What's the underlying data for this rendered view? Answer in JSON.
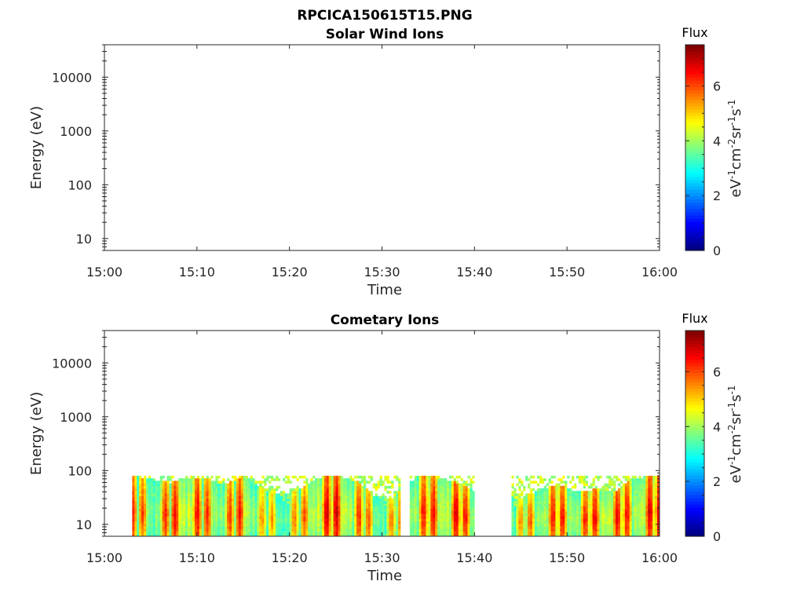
{
  "figure_title": "RPCICA150615T15.PNG",
  "chart_data": [
    {
      "type": "heatmap",
      "title": "Solar Wind Ions",
      "xlabel": "Time",
      "ylabel": "Energy (eV)",
      "x_ticks": [
        "15:00",
        "15:10",
        "15:20",
        "15:30",
        "15:40",
        "15:50",
        "16:00"
      ],
      "xlim": [
        "15:00",
        "16:00"
      ],
      "y_scale": "log",
      "y_ticks": [
        "10",
        "100",
        "1000",
        "10000"
      ],
      "ylim": [
        6,
        40000
      ],
      "colorbar": {
        "label": "Flux",
        "unit_label": "eV-1cm-2sr-1s-1",
        "ticks": [
          "0",
          "2",
          "4",
          "6"
        ],
        "range": [
          0,
          7.5
        ],
        "colormap": "jet"
      },
      "cells": []
    },
    {
      "type": "heatmap",
      "title": "Cometary Ions",
      "xlabel": "Time",
      "ylabel": "Energy (eV)",
      "x_ticks": [
        "15:00",
        "15:10",
        "15:20",
        "15:30",
        "15:40",
        "15:50",
        "16:00"
      ],
      "xlim": [
        "15:00",
        "16:00"
      ],
      "y_scale": "log",
      "y_ticks": [
        "10",
        "100",
        "1000",
        "10000"
      ],
      "ylim": [
        6,
        40000
      ],
      "colorbar": {
        "label": "Flux",
        "unit_label": "eV-1cm-2sr-1s-1",
        "ticks": [
          "0",
          "2",
          "4",
          "6"
        ],
        "range": [
          0,
          7.5
        ],
        "colormap": "jet"
      },
      "data_coverage": {
        "energy_range_eV": [
          6,
          80
        ],
        "time_segments": [
          [
            "15:03",
            "15:32"
          ],
          [
            "15:33",
            "15:40"
          ],
          [
            "15:44",
            "16:00"
          ]
        ]
      },
      "time_profile": [
        {
          "t": 3,
          "e": 80,
          "v": 6.4
        },
        {
          "t": 5,
          "e": 70,
          "v": 5.8
        },
        {
          "t": 7,
          "e": 60,
          "v": 6.6
        },
        {
          "t": 9,
          "e": 75,
          "v": 6.9
        },
        {
          "t": 11,
          "e": 70,
          "v": 6.3
        },
        {
          "t": 13,
          "e": 55,
          "v": 6.1
        },
        {
          "t": 15,
          "e": 80,
          "v": 6.7
        },
        {
          "t": 17,
          "e": 45,
          "v": 5.5
        },
        {
          "t": 19,
          "e": 35,
          "v": 5.6
        },
        {
          "t": 21,
          "e": 45,
          "v": 5.8
        },
        {
          "t": 23,
          "e": 75,
          "v": 6.8
        },
        {
          "t": 25,
          "e": 80,
          "v": 7.0
        },
        {
          "t": 27,
          "e": 65,
          "v": 6.4
        },
        {
          "t": 29,
          "e": 35,
          "v": 5.8
        },
        {
          "t": 31,
          "e": 30,
          "v": 5.7
        },
        {
          "t": 34,
          "e": 80,
          "v": 6.5
        },
        {
          "t": 36,
          "e": 75,
          "v": 6.6
        },
        {
          "t": 38,
          "e": 60,
          "v": 6.9
        },
        {
          "t": 40,
          "e": 40,
          "v": 6.0
        },
        {
          "t": 45,
          "e": 30,
          "v": 5.6
        },
        {
          "t": 47,
          "e": 45,
          "v": 6.3
        },
        {
          "t": 49,
          "e": 55,
          "v": 6.6
        },
        {
          "t": 51,
          "e": 40,
          "v": 6.2
        },
        {
          "t": 53,
          "e": 45,
          "v": 6.7
        },
        {
          "t": 55,
          "e": 40,
          "v": 6.8
        },
        {
          "t": 57,
          "e": 70,
          "v": 6.4
        },
        {
          "t": 59,
          "e": 80,
          "v": 6.9
        }
      ]
    }
  ]
}
